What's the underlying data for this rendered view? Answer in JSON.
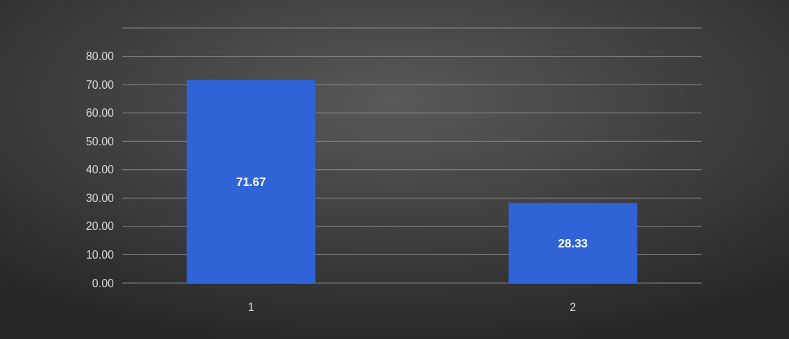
{
  "chart_data": {
    "type": "bar",
    "categories": [
      "1",
      "2"
    ],
    "values": [
      71.67,
      28.33
    ],
    "color": "#2f63d6",
    "ylim": [
      0,
      90
    ],
    "yticks": [
      {
        "value": 0,
        "label": "0.00"
      },
      {
        "value": 10,
        "label": "10.00"
      },
      {
        "value": 20,
        "label": "20.00"
      },
      {
        "value": 30,
        "label": "30.00"
      },
      {
        "value": 40,
        "label": "40.00"
      },
      {
        "value": 50,
        "label": "50.00"
      },
      {
        "value": 60,
        "label": "60.00"
      },
      {
        "value": 70,
        "label": "70.00"
      },
      {
        "value": 80,
        "label": "80.00"
      },
      {
        "value": 90,
        "label": null
      }
    ],
    "grid": "y",
    "data_labels": true
  }
}
